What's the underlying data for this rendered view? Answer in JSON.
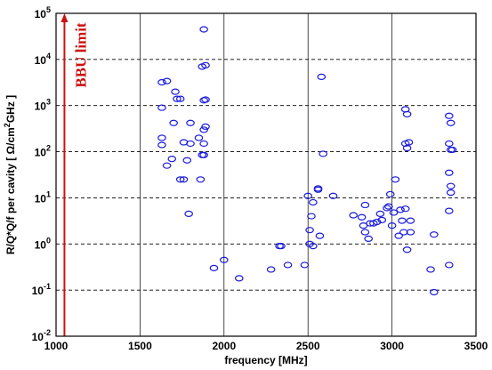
{
  "chart_data": {
    "type": "scatter",
    "xlabel": "frequency [MHz]",
    "ylabel_parts": [
      "R/Q*Q/f per cavity  [ Ω/cm",
      "2",
      "GHz ]"
    ],
    "xlim": [
      1000,
      3500
    ],
    "ylim": [
      0.01,
      100000
    ],
    "yscale": "log",
    "grid": true,
    "x_ticks": [
      1000,
      1500,
      2000,
      2500,
      3000,
      3500
    ],
    "x_tick_labels": [
      "1000",
      "1500",
      "2000",
      "2500",
      "3000",
      "3500"
    ],
    "y_tick_exponents": [
      -2,
      -1,
      0,
      1,
      2,
      3,
      4,
      5
    ],
    "marker_color": "#1a1adc",
    "annotation": {
      "text": "BBU limit",
      "x": 1050,
      "color": "#cc1111"
    },
    "points": [
      [
        1880,
        45000
      ],
      [
        1870,
        7000
      ],
      [
        1890,
        7500
      ],
      [
        1630,
        3200
      ],
      [
        1660,
        3400
      ],
      [
        1710,
        2000
      ],
      [
        1720,
        1400
      ],
      [
        1740,
        1400
      ],
      [
        1880,
        1300
      ],
      [
        1890,
        1350
      ],
      [
        1630,
        900
      ],
      [
        1700,
        420
      ],
      [
        1800,
        420
      ],
      [
        1880,
        300
      ],
      [
        1890,
        350
      ],
      [
        1850,
        200
      ],
      [
        1880,
        150
      ],
      [
        1630,
        200
      ],
      [
        1630,
        140
      ],
      [
        1760,
        160
      ],
      [
        1800,
        150
      ],
      [
        1870,
        85
      ],
      [
        1880,
        85
      ],
      [
        1690,
        70
      ],
      [
        1780,
        65
      ],
      [
        1660,
        50
      ],
      [
        1740,
        25
      ],
      [
        1760,
        25
      ],
      [
        1860,
        25
      ],
      [
        1790,
        4.5
      ],
      [
        1940,
        0.3
      ],
      [
        2000,
        0.45
      ],
      [
        2090,
        0.18
      ],
      [
        2280,
        0.28
      ],
      [
        2330,
        0.9
      ],
      [
        2340,
        0.9
      ],
      [
        2380,
        0.35
      ],
      [
        2480,
        0.35
      ],
      [
        2500,
        11
      ],
      [
        2510,
        2
      ],
      [
        2510,
        1.0
      ],
      [
        2530,
        0.9
      ],
      [
        2520,
        4
      ],
      [
        2530,
        8
      ],
      [
        2560,
        16
      ],
      [
        2560,
        15
      ],
      [
        2580,
        4200
      ],
      [
        2590,
        90
      ],
      [
        2570,
        1.5
      ],
      [
        2650,
        11
      ],
      [
        2770,
        4.2
      ],
      [
        2820,
        3.8
      ],
      [
        2830,
        2.5
      ],
      [
        2840,
        7
      ],
      [
        2840,
        1.8
      ],
      [
        2860,
        1.3
      ],
      [
        2870,
        2.8
      ],
      [
        2890,
        2.8
      ],
      [
        2910,
        3
      ],
      [
        2930,
        4.5
      ],
      [
        2940,
        3.3
      ],
      [
        2970,
        6
      ],
      [
        2980,
        6.5
      ],
      [
        2990,
        12
      ],
      [
        3000,
        2.5
      ],
      [
        3010,
        4.8
      ],
      [
        3020,
        25
      ],
      [
        3040,
        1.5
      ],
      [
        3050,
        5.5
      ],
      [
        3060,
        3.2
      ],
      [
        3070,
        1.8
      ],
      [
        3080,
        150
      ],
      [
        3090,
        120
      ],
      [
        3100,
        160
      ],
      [
        3080,
        830
      ],
      [
        3090,
        650
      ],
      [
        3080,
        5.8
      ],
      [
        3090,
        0.75
      ],
      [
        3110,
        3.2
      ],
      [
        3110,
        1.8
      ],
      [
        3230,
        0.28
      ],
      [
        3250,
        1.6
      ],
      [
        3250,
        0.09
      ],
      [
        3340,
        600
      ],
      [
        3350,
        420
      ],
      [
        3340,
        150
      ],
      [
        3350,
        110
      ],
      [
        3360,
        110
      ],
      [
        3340,
        35
      ],
      [
        3350,
        18
      ],
      [
        3350,
        13
      ],
      [
        3340,
        5.2
      ],
      [
        3340,
        0.35
      ]
    ]
  }
}
